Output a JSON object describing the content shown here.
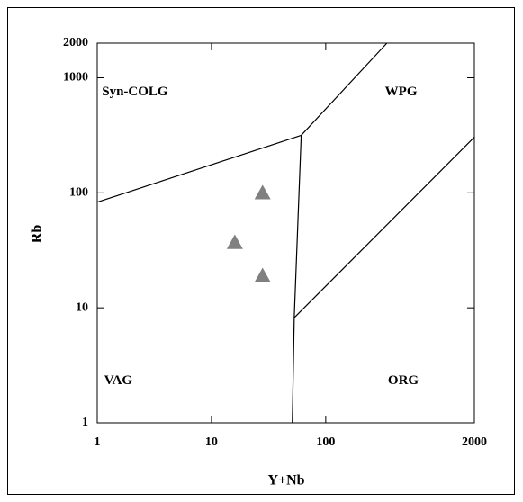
{
  "chart_data": {
    "type": "scatter",
    "xlabel": "Y+Nb",
    "ylabel": "Rb",
    "x": [
      16,
      28,
      28
    ],
    "values": [
      37,
      100,
      19
    ],
    "color": "#808080",
    "marker": "triangle",
    "xlim": [
      1,
      2000
    ],
    "ylim": [
      1,
      2000
    ],
    "xscale": "log",
    "yscale": "log",
    "xticks": [
      1,
      10,
      100,
      2000
    ],
    "yticks": [
      1,
      10,
      100,
      1000,
      2000
    ],
    "boundaries": [
      {
        "x": [
          1,
          61
        ],
        "y": [
          83,
          316
        ]
      },
      {
        "x": [
          61,
          343
        ],
        "y": [
          316,
          2000
        ]
      },
      {
        "x": [
          61,
          53,
          51
        ],
        "y": [
          316,
          8.2,
          1
        ]
      },
      {
        "x": [
          53,
          2000
        ],
        "y": [
          8.2,
          305
        ]
      }
    ],
    "annotations": [
      {
        "text": "Syn-COLG",
        "x": 1.1,
        "y": 750
      },
      {
        "text": "WPG",
        "x": 330,
        "y": 750
      },
      {
        "text": "VAG",
        "x": 1.15,
        "y": 2.3
      },
      {
        "text": "ORG",
        "x": 350,
        "y": 2.3
      }
    ]
  }
}
